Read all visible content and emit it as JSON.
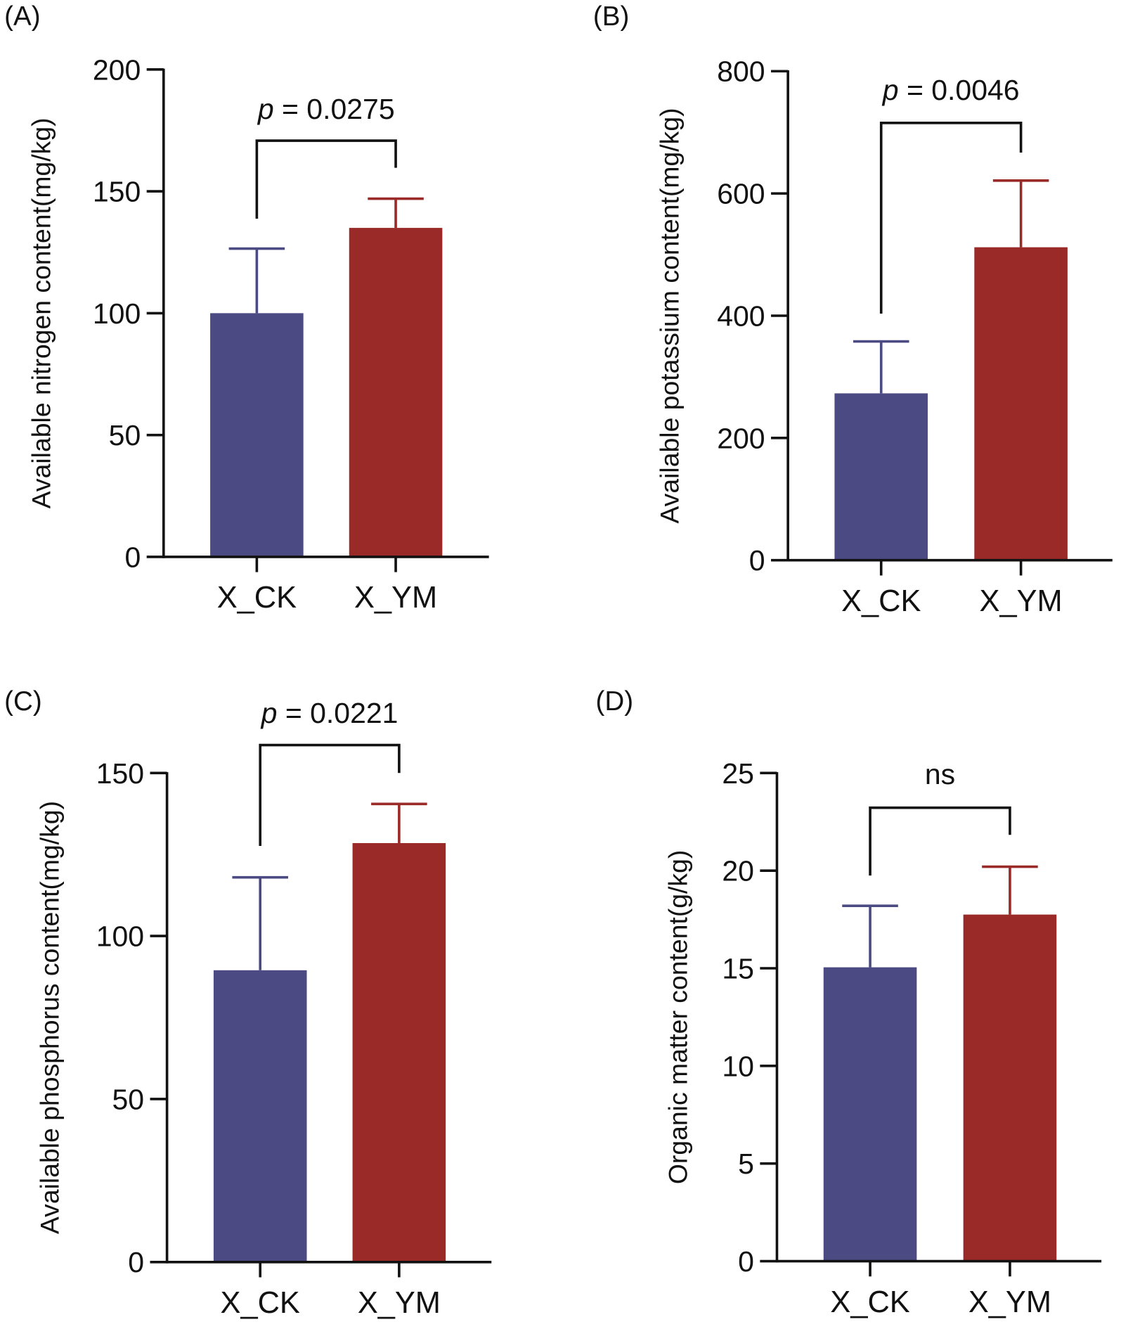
{
  "colors": {
    "X_CK": "#4b4a82",
    "X_YM": "#992a28",
    "axis": "#111111"
  },
  "chart_data": [
    {
      "type": "bar",
      "panel": "(A)",
      "categories": [
        "X_CK",
        "X_YM"
      ],
      "values": [
        100,
        135
      ],
      "errors_upper": [
        126.5,
        147
      ],
      "ylabel": "Available nitrogen content(mg/kg)",
      "ylim": [
        0,
        200
      ],
      "yticks": [
        0,
        50,
        100,
        150,
        200
      ],
      "annotation": "p = 0.0275",
      "annotation_p": "p",
      "annotation_rest": " = 0.0275"
    },
    {
      "type": "bar",
      "panel": "(B)",
      "categories": [
        "X_CK",
        "X_YM"
      ],
      "values": [
        273,
        512
      ],
      "errors_upper": [
        358,
        621
      ],
      "ylabel": "Available potassium content(mg/kg)",
      "ylim": [
        0,
        800
      ],
      "yticks": [
        0,
        200,
        400,
        600,
        800
      ],
      "annotation": "p = 0.0046",
      "annotation_p": "p",
      "annotation_rest": " = 0.0046"
    },
    {
      "type": "bar",
      "panel": "(C)",
      "categories": [
        "X_CK",
        "X_YM"
      ],
      "values": [
        89.5,
        128.5
      ],
      "errors_upper": [
        118,
        140.5
      ],
      "ylabel": "Available phosphorus content(mg/kg)",
      "ylim": [
        0,
        150
      ],
      "yticks": [
        0,
        50,
        100,
        150
      ],
      "annotation": "p = 0.0221",
      "annotation_p": "p",
      "annotation_rest": " = 0.0221"
    },
    {
      "type": "bar",
      "panel": "(D)",
      "categories": [
        "X_CK",
        "X_YM"
      ],
      "values": [
        15.05,
        17.75
      ],
      "errors_upper": [
        18.2,
        20.2
      ],
      "ylabel": "Organic matter content(g/kg)",
      "ylim": [
        0,
        25
      ],
      "yticks": [
        0,
        5,
        10,
        15,
        20,
        25
      ],
      "annotation": "ns",
      "annotation_p": "",
      "annotation_rest": "ns"
    }
  ]
}
